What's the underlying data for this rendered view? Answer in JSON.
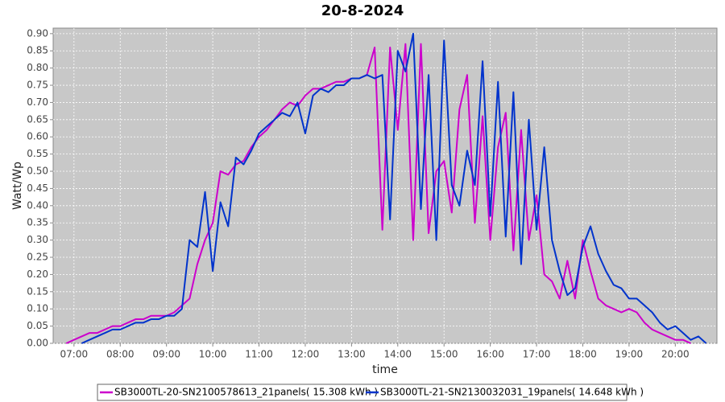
{
  "chart_data": {
    "type": "line",
    "title": "20-8-2024",
    "xlabel": "time",
    "ylabel": "Watt/Wp",
    "x": [
      410,
      420,
      430,
      440,
      450,
      460,
      470,
      480,
      490,
      500,
      510,
      520,
      530,
      540,
      550,
      560,
      570,
      580,
      590,
      600,
      610,
      620,
      630,
      640,
      650,
      660,
      670,
      680,
      690,
      700,
      710,
      720,
      730,
      740,
      750,
      760,
      770,
      780,
      790,
      800,
      810,
      820,
      830,
      840,
      850,
      860,
      870,
      880,
      890,
      900,
      910,
      920,
      930,
      940,
      950,
      960,
      970,
      980,
      990,
      1000,
      1010,
      1020,
      1030,
      1040,
      1050,
      1060,
      1070,
      1080,
      1090,
      1100,
      1110,
      1120,
      1130,
      1140,
      1150,
      1160,
      1170,
      1180,
      1190,
      1200,
      1210,
      1220,
      1230,
      1240
    ],
    "series": [
      {
        "name": "SB3000TL-20-SN2100578613_21panels( 15.308 kWh )",
        "color": "#cc00cc",
        "values": [
          0.0,
          0.01,
          0.02,
          0.03,
          0.03,
          0.04,
          0.05,
          0.05,
          0.06,
          0.07,
          0.07,
          0.08,
          0.08,
          0.08,
          0.09,
          0.11,
          0.13,
          0.23,
          0.3,
          0.35,
          0.5,
          0.49,
          0.52,
          0.53,
          0.57,
          0.6,
          0.62,
          0.65,
          0.68,
          0.7,
          0.69,
          0.72,
          0.74,
          0.74,
          0.75,
          0.76,
          0.76,
          0.77,
          0.77,
          0.78,
          0.86,
          0.33,
          0.86,
          0.62,
          0.87,
          0.3,
          0.87,
          0.32,
          0.5,
          0.53,
          0.38,
          0.68,
          0.78,
          0.35,
          0.66,
          0.3,
          0.57,
          0.67,
          0.27,
          0.62,
          0.3,
          0.43,
          0.2,
          0.18,
          0.13,
          0.24,
          0.13,
          0.3,
          0.21,
          0.13,
          0.11,
          0.1,
          0.09,
          0.1,
          0.09,
          0.06,
          0.04,
          0.03,
          0.02,
          0.01,
          0.01,
          0.0,
          null,
          null
        ]
      },
      {
        "name": "SB3000TL-21-SN2130032031_19panels( 14.648 kWh )",
        "color": "#0033cc",
        "values": [
          null,
          null,
          0.0,
          0.01,
          0.02,
          0.03,
          0.04,
          0.04,
          0.05,
          0.06,
          0.06,
          0.07,
          0.07,
          0.08,
          0.08,
          0.1,
          0.3,
          0.28,
          0.44,
          0.21,
          0.41,
          0.34,
          0.54,
          0.52,
          0.56,
          0.61,
          0.63,
          0.65,
          0.67,
          0.66,
          0.7,
          0.61,
          0.72,
          0.74,
          0.73,
          0.75,
          0.75,
          0.77,
          0.77,
          0.78,
          0.77,
          0.78,
          0.36,
          0.85,
          0.79,
          0.9,
          0.39,
          0.78,
          0.3,
          0.88,
          0.46,
          0.4,
          0.56,
          0.46,
          0.82,
          0.37,
          0.76,
          0.31,
          0.73,
          0.23,
          0.65,
          0.33,
          0.57,
          0.3,
          0.21,
          0.14,
          0.16,
          0.28,
          0.34,
          0.26,
          0.21,
          0.17,
          0.16,
          0.13,
          0.13,
          0.11,
          0.09,
          0.06,
          0.04,
          0.05,
          0.03,
          0.01,
          0.02,
          0.0
        ]
      }
    ],
    "xlim": [
      393,
      1254
    ],
    "xticks": [
      {
        "value": 420,
        "label": "07:00"
      },
      {
        "value": 480,
        "label": "08:00"
      },
      {
        "value": 540,
        "label": "09:00"
      },
      {
        "value": 600,
        "label": "10:00"
      },
      {
        "value": 660,
        "label": "11:00"
      },
      {
        "value": 720,
        "label": "12:00"
      },
      {
        "value": 780,
        "label": "13:00"
      },
      {
        "value": 840,
        "label": "14:00"
      },
      {
        "value": 900,
        "label": "15:00"
      },
      {
        "value": 960,
        "label": "16:00"
      },
      {
        "value": 1020,
        "label": "17:00"
      },
      {
        "value": 1080,
        "label": "18:00"
      },
      {
        "value": 1140,
        "label": "19:00"
      },
      {
        "value": 1200,
        "label": "20:00"
      }
    ],
    "ylim": [
      0,
      0.916
    ],
    "yticks": [
      {
        "value": 0,
        "label": "0.00"
      },
      {
        "value": 0.05,
        "label": "0.05"
      },
      {
        "value": 0.1,
        "label": "0.10"
      },
      {
        "value": 0.15,
        "label": "0.15"
      },
      {
        "value": 0.2,
        "label": "0.20"
      },
      {
        "value": 0.25,
        "label": "0.25"
      },
      {
        "value": 0.3,
        "label": "0.30"
      },
      {
        "value": 0.35,
        "label": "0.35"
      },
      {
        "value": 0.4,
        "label": "0.40"
      },
      {
        "value": 0.45,
        "label": "0.45"
      },
      {
        "value": 0.5,
        "label": "0.50"
      },
      {
        "value": 0.55,
        "label": "0.55"
      },
      {
        "value": 0.6,
        "label": "0.60"
      },
      {
        "value": 0.65,
        "label": "0.65"
      },
      {
        "value": 0.7,
        "label": "0.70"
      },
      {
        "value": 0.75,
        "label": "0.75"
      },
      {
        "value": 0.8,
        "label": "0.80"
      },
      {
        "value": 0.85,
        "label": "0.85"
      },
      {
        "value": 0.9,
        "label": "0.90"
      }
    ],
    "grid": true
  }
}
